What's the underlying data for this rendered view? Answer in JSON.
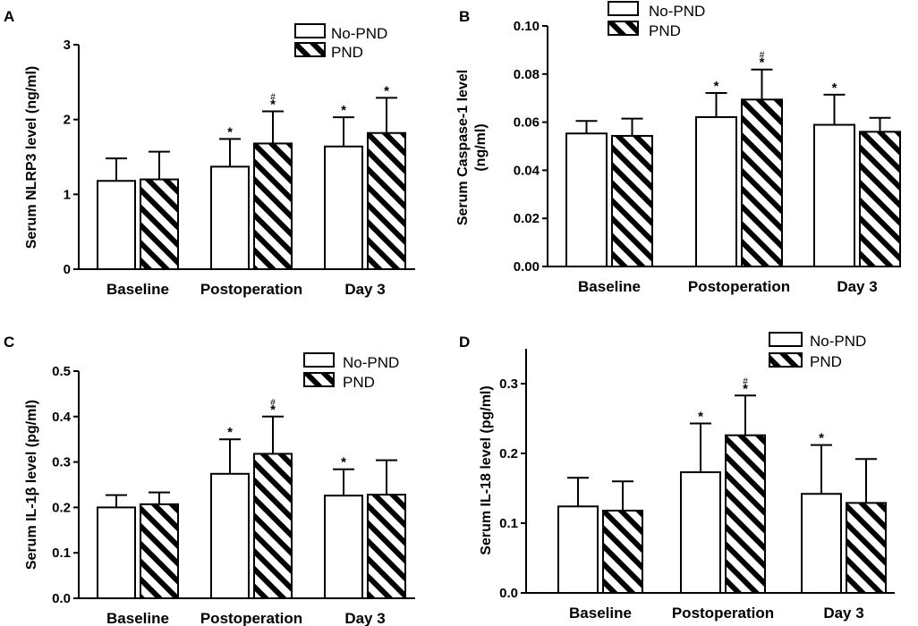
{
  "figure": {
    "colors": {
      "axis": "#000000",
      "bar_fill": "#ffffff",
      "bar_stroke": "#000000",
      "hatch": "#000000"
    },
    "legend": {
      "no_pnd": "No-PND",
      "pnd": "PND"
    },
    "significance": {
      "star": "*",
      "hash": "#"
    }
  },
  "chart_data": [
    {
      "panel": "A",
      "type": "bar",
      "title": "",
      "xlabel": "",
      "ylabel": "Serum NLRP3 level (ng/ml)",
      "ylabel_lines": [
        "Serum NLRP3 level (ng/ml)"
      ],
      "ylim": [
        0,
        3
      ],
      "yticks": [
        "0",
        "1",
        "2",
        "3"
      ],
      "ytick_values": [
        0,
        1,
        2,
        3
      ],
      "categories": [
        "Baseline",
        "Postoperation",
        "Day 3"
      ],
      "series": [
        {
          "name": "No-PND",
          "values": [
            1.18,
            1.37,
            1.64
          ],
          "errors": [
            0.3,
            0.37,
            0.39
          ],
          "marks": [
            [],
            [
              "*"
            ],
            [
              "*"
            ]
          ]
        },
        {
          "name": "PND",
          "values": [
            1.2,
            1.68,
            1.82
          ],
          "errors": [
            0.37,
            0.43,
            0.47
          ],
          "marks": [
            [],
            [
              "*",
              "#"
            ],
            [
              "*"
            ]
          ]
        }
      ],
      "legend_position": "top-right"
    },
    {
      "panel": "B",
      "type": "bar",
      "title": "",
      "xlabel": "",
      "ylabel": "Serum Caspase-1 level (ng/ml)",
      "ylabel_lines": [
        "Serum Caspase-1 level",
        "(ng/ml)"
      ],
      "ylim": [
        0,
        0.1
      ],
      "yticks": [
        "0.00",
        "0.02",
        "0.04",
        "0.06",
        "0.08",
        "0.10"
      ],
      "ytick_values": [
        0,
        0.02,
        0.04,
        0.06,
        0.08,
        0.1
      ],
      "categories": [
        "Baseline",
        "Postoperation",
        "Day 3"
      ],
      "series": [
        {
          "name": "No-PND",
          "values": [
            0.0553,
            0.0621,
            0.0589
          ],
          "errors": [
            0.0052,
            0.01,
            0.0125
          ],
          "marks": [
            [],
            [
              "*"
            ],
            [
              "*"
            ]
          ]
        },
        {
          "name": "PND",
          "values": [
            0.0543,
            0.0694,
            0.056
          ],
          "errors": [
            0.0072,
            0.0125,
            0.0058
          ],
          "marks": [
            [],
            [
              "*",
              "#"
            ],
            []
          ]
        }
      ],
      "legend_position": "top-right"
    },
    {
      "panel": "C",
      "type": "bar",
      "title": "",
      "xlabel": "",
      "ylabel": "Serum IL-1β level (pg/ml)",
      "ylabel_lines": [
        "Serum IL-1β level (pg/ml)"
      ],
      "ylim": [
        0,
        0.5
      ],
      "yticks": [
        "0.0",
        "0.1",
        "0.2",
        "0.3",
        "0.4",
        "0.5"
      ],
      "ytick_values": [
        0,
        0.1,
        0.2,
        0.3,
        0.4,
        0.5
      ],
      "categories": [
        "Baseline",
        "Postoperation",
        "Day 3"
      ],
      "series": [
        {
          "name": "No-PND",
          "values": [
            0.2,
            0.274,
            0.226
          ],
          "errors": [
            0.027,
            0.076,
            0.058
          ],
          "marks": [
            [],
            [
              "*"
            ],
            [
              "*"
            ]
          ]
        },
        {
          "name": "PND",
          "values": [
            0.207,
            0.318,
            0.228
          ],
          "errors": [
            0.026,
            0.082,
            0.076
          ],
          "marks": [
            [],
            [
              "*",
              "#"
            ],
            []
          ]
        }
      ],
      "legend_position": "top-right"
    },
    {
      "panel": "D",
      "type": "bar",
      "title": "",
      "xlabel": "",
      "ylabel": "Serum IL-18 level (pg/ml)",
      "ylabel_lines": [
        "Serum IL-18 level (pg/ml)"
      ],
      "ylim": [
        0,
        0.35
      ],
      "yticks": [
        "0.0",
        "0.1",
        "0.2",
        "0.3"
      ],
      "ytick_values": [
        0,
        0.1,
        0.2,
        0.3
      ],
      "categories": [
        "Baseline",
        "Postoperation",
        "Day 3"
      ],
      "series": [
        {
          "name": "No-PND",
          "values": [
            0.124,
            0.173,
            0.142
          ],
          "errors": [
            0.041,
            0.07,
            0.07
          ],
          "marks": [
            [],
            [
              "*"
            ],
            [
              "*"
            ]
          ]
        },
        {
          "name": "PND",
          "values": [
            0.118,
            0.226,
            0.129
          ],
          "errors": [
            0.042,
            0.057,
            0.063
          ],
          "marks": [
            [],
            [
              "*",
              "#"
            ],
            []
          ]
        }
      ],
      "legend_position": "top-right"
    }
  ]
}
